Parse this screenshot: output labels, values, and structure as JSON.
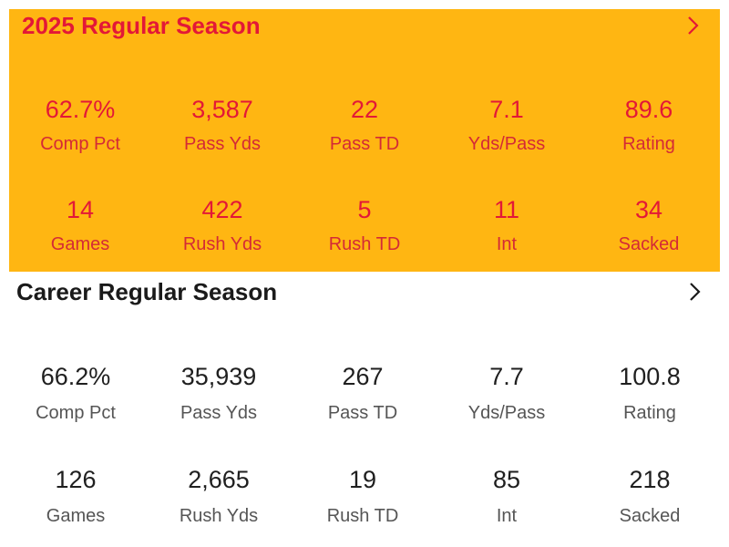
{
  "sections": [
    {
      "title": "2025 Regular Season",
      "stats": [
        {
          "value": "62.7%",
          "label": "Comp Pct"
        },
        {
          "value": "3,587",
          "label": "Pass Yds"
        },
        {
          "value": "22",
          "label": "Pass TD"
        },
        {
          "value": "7.1",
          "label": "Yds/Pass"
        },
        {
          "value": "89.6",
          "label": "Rating"
        },
        {
          "value": "14",
          "label": "Games"
        },
        {
          "value": "422",
          "label": "Rush Yds"
        },
        {
          "value": "5",
          "label": "Rush TD"
        },
        {
          "value": "11",
          "label": "Int"
        },
        {
          "value": "34",
          "label": "Sacked"
        }
      ]
    },
    {
      "title": "Career Regular Season",
      "stats": [
        {
          "value": "66.2%",
          "label": "Comp Pct"
        },
        {
          "value": "35,939",
          "label": "Pass Yds"
        },
        {
          "value": "267",
          "label": "Pass TD"
        },
        {
          "value": "7.7",
          "label": "Yds/Pass"
        },
        {
          "value": "100.8",
          "label": "Rating"
        },
        {
          "value": "126",
          "label": "Games"
        },
        {
          "value": "2,665",
          "label": "Rush Yds"
        },
        {
          "value": "19",
          "label": "Rush TD"
        },
        {
          "value": "85",
          "label": "Int"
        },
        {
          "value": "218",
          "label": "Sacked"
        }
      ]
    }
  ]
}
